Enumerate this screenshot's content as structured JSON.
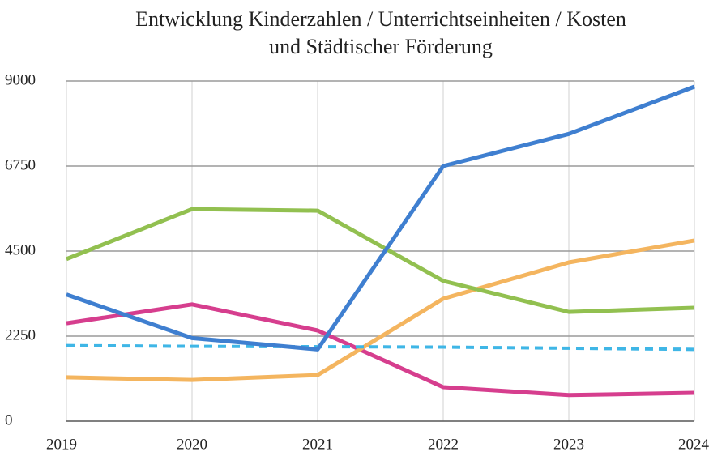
{
  "chart_data": {
    "type": "line",
    "title": [
      "Entwicklung Kinderzahlen / Unterrichtseinheiten / Kosten",
      "und Städtischer Förderung"
    ],
    "categories": [
      "2019",
      "2020",
      "2021",
      "2022",
      "2023",
      "2024"
    ],
    "series": [
      {
        "color": "#d63e8e",
        "values": [
          2590,
          3090,
          2400,
          900,
          690,
          750
        ]
      },
      {
        "color": "#f4b55f",
        "values": [
          1160,
          1090,
          1220,
          3240,
          4200,
          4780
        ]
      },
      {
        "color": "#92c050",
        "values": [
          4290,
          5610,
          5570,
          3710,
          2890,
          3000
        ]
      },
      {
        "color": "#3fb6e6",
        "dashed": true,
        "values": [
          2000,
          1980,
          1970,
          1960,
          1930,
          1900
        ]
      },
      {
        "color": "#3f7fd0",
        "values": [
          3350,
          2200,
          1900,
          6750,
          7600,
          8850
        ]
      }
    ],
    "ylim": [
      0,
      9000
    ],
    "yticks": [
      0,
      2250,
      4500,
      6750,
      9000
    ],
    "grid": true
  }
}
